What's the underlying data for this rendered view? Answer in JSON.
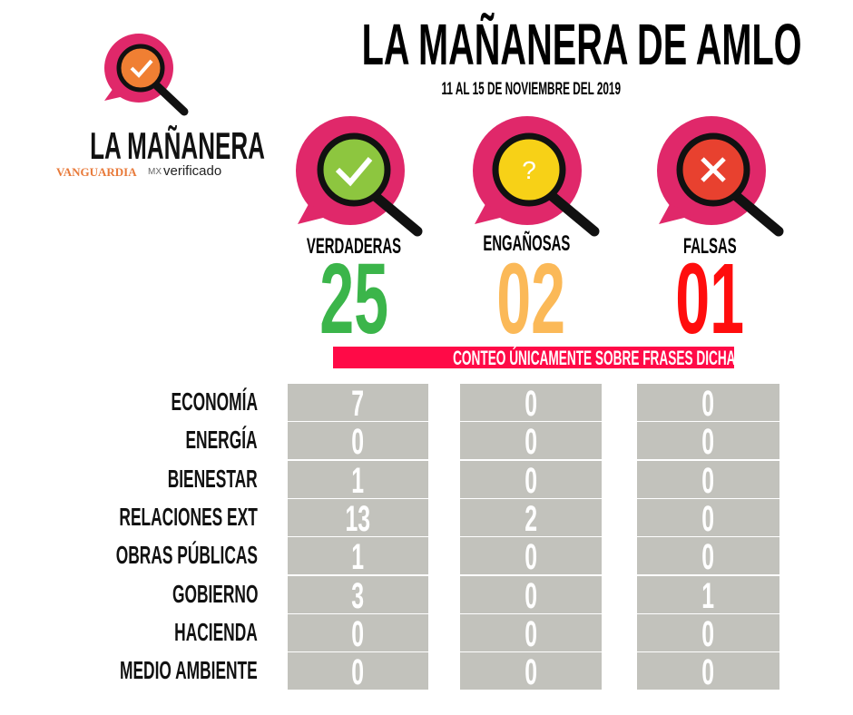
{
  "header": {
    "title": "LA MAÑANERA DE AMLO",
    "subtitle": "11 AL 15 DE NOVIEMBRE DEL 2019"
  },
  "logo": {
    "name": "LA MAÑANERA",
    "brand": "VANGUARDIA",
    "brand_suffix": "MX",
    "partner": "verificado",
    "icon": "magnifier-check-icon"
  },
  "categories": [
    {
      "label": "VERDADERAS",
      "count": "25",
      "color": "#3bb54a",
      "icon": "check-icon",
      "icon_color": "#8dc63f"
    },
    {
      "label": "ENGAÑOSAS",
      "count": "02",
      "color": "#fbb958",
      "icon": "question-icon",
      "icon_color": "#f7d117"
    },
    {
      "label": "FALSAS",
      "count": "01",
      "color": "#ff0d0d",
      "icon": "x-icon",
      "icon_color": "#e8412f"
    }
  ],
  "note": "CONTEO ÚNICAMENTE SOBRE FRASES DICHAS POR INVITADOS",
  "colors": {
    "bubble": "#e0286a",
    "note_bg": "#ff0a47",
    "cell_bg": "#c2c2bc"
  },
  "table": [
    {
      "label": "ECONOMÍA",
      "values": [
        "7",
        "0",
        "0"
      ]
    },
    {
      "label": "ENERGÍA",
      "values": [
        "0",
        "0",
        "0"
      ]
    },
    {
      "label": "BIENESTAR",
      "values": [
        "1",
        "0",
        "0"
      ]
    },
    {
      "label": "RELACIONES EXT",
      "values": [
        "13",
        "2",
        "0"
      ]
    },
    {
      "label": "OBRAS PÚBLICAS",
      "values": [
        "1",
        "0",
        "0"
      ]
    },
    {
      "label": "GOBIERNO",
      "values": [
        "3",
        "0",
        "1"
      ]
    },
    {
      "label": "HACIENDA",
      "values": [
        "0",
        "0",
        "0"
      ]
    },
    {
      "label": "MEDIO AMBIENTE",
      "values": [
        "0",
        "0",
        "0"
      ]
    }
  ]
}
